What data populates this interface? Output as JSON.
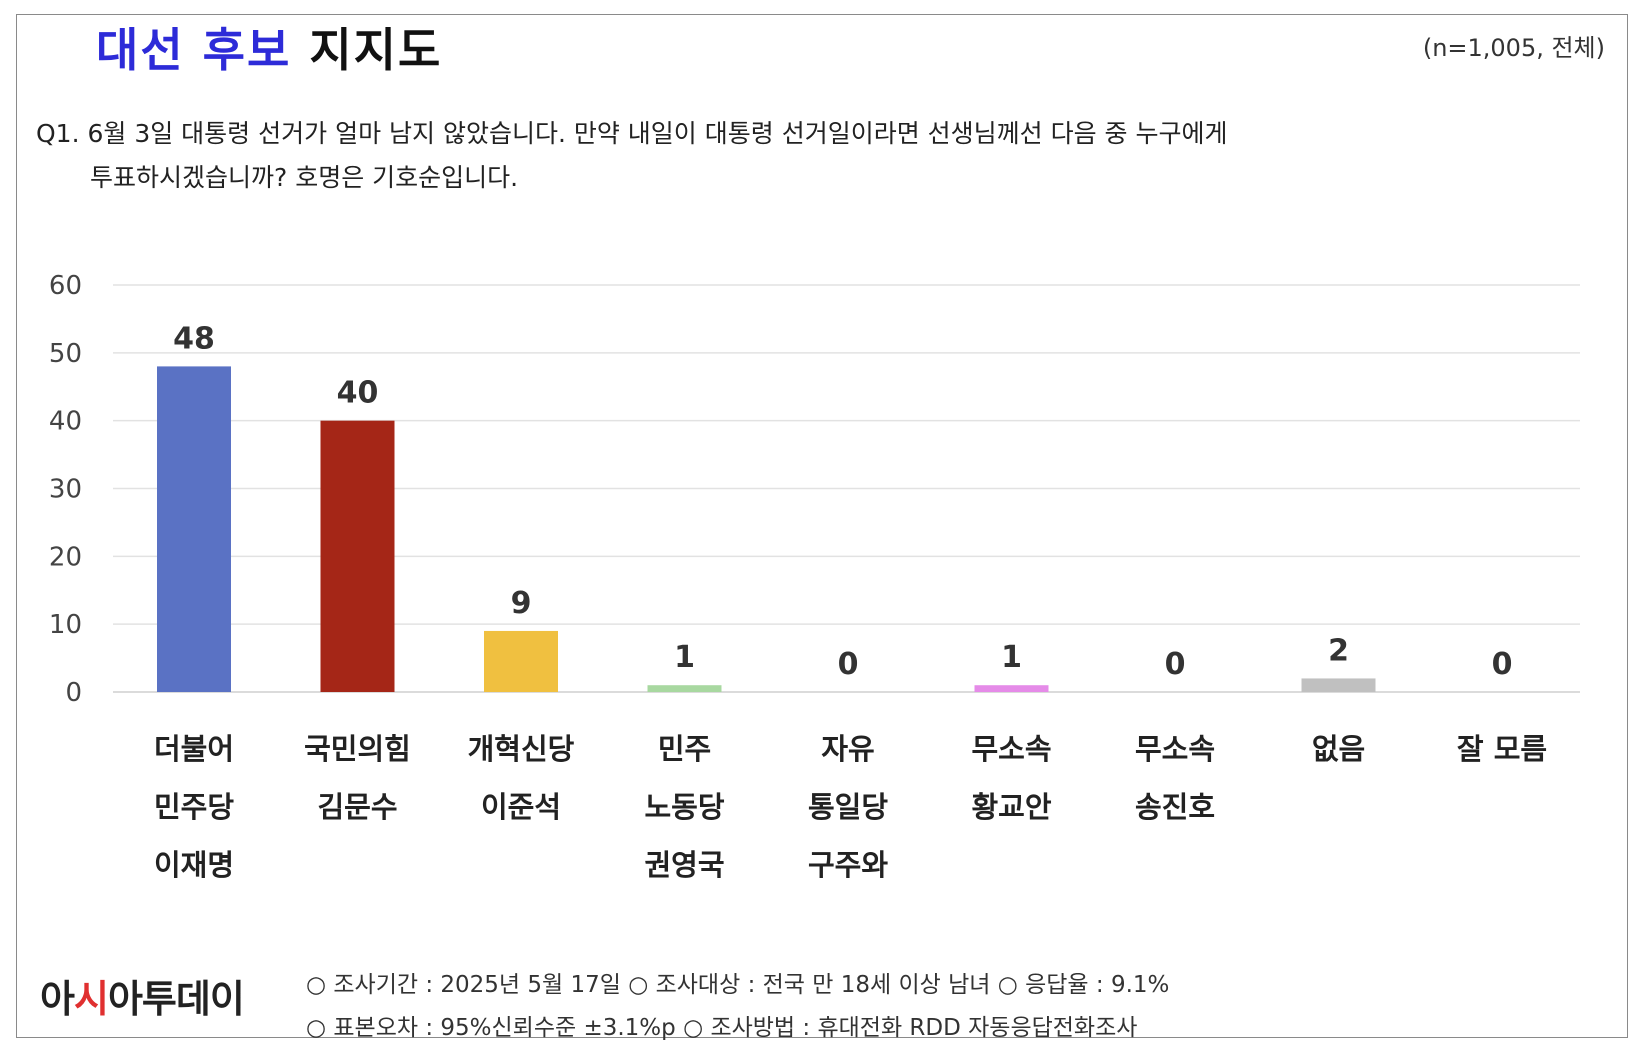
{
  "title_part1": "대선 후보",
  "title_part2": "지지도",
  "sample": "(n=1,005, 전체)",
  "question_line1": "Q1. 6월 3일 대통령 선거가 얼마 남지 않았습니다. 만약 내일이 대통령 선거일이라면 선생님께선 다음 중 누구에게",
  "question_line2": "투표하시겠습니까? 호명은 기호순입니다.",
  "chart_data": {
    "type": "bar",
    "categories": [
      [
        "더불어",
        "민주당",
        "이재명"
      ],
      [
        "국민의힘",
        "김문수"
      ],
      [
        "개혁신당",
        "이준석"
      ],
      [
        "민주",
        "노동당",
        "권영국"
      ],
      [
        "자유",
        "통일당",
        "구주와"
      ],
      [
        "무소속",
        "황교안"
      ],
      [
        "무소속",
        "송진호"
      ],
      [
        "없음"
      ],
      [
        "잘 모름"
      ]
    ],
    "values": [
      48,
      40,
      9,
      1,
      0,
      1,
      0,
      2,
      0
    ],
    "colors": [
      "#5a72c4",
      "#a52617",
      "#f0c040",
      "#a8d8a0",
      "#cccccc",
      "#e58be8",
      "#cccccc",
      "#c0c0c0",
      "#cccccc"
    ],
    "yticks": [
      0,
      10,
      20,
      30,
      40,
      50,
      60
    ],
    "ylim": [
      0,
      60
    ],
    "grid": true
  },
  "footer": {
    "logo_part1": "아",
    "logo_part2": "시",
    "logo_part3": "아투데이",
    "line1": "○ 조사기간 : 2025년 5월 17일 ○ 조사대상 : 전국 만 18세 이상 남녀 ○ 응답율 : 9.1%",
    "line2": "○ 표본오차 : 95%신뢰수준 ±3.1%p ○ 조사방법 : 휴대전화 RDD 자동응답전화조사"
  }
}
